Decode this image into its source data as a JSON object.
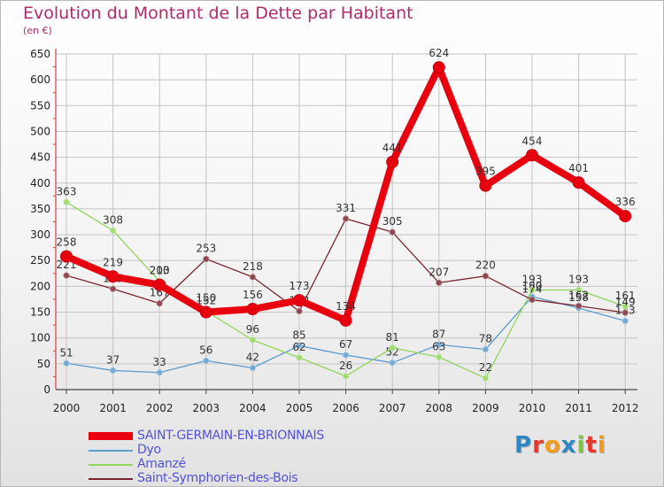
{
  "title": "Evolution du Montant de la Dette par Habitant",
  "subtitle": "(en €)",
  "logo": {
    "text": "Proxiti",
    "letters": [
      {
        "ch": "P",
        "color": "#2f87c8"
      },
      {
        "ch": "r",
        "color": "#e8362b"
      },
      {
        "ch": "o",
        "color": "#f39c1c"
      },
      {
        "ch": "x",
        "color": "#2f87c8"
      },
      {
        "ch": "i",
        "color": "#7cc243"
      },
      {
        "ch": "t",
        "color": "#e8362b"
      },
      {
        "ch": "i",
        "color": "#f39c1c"
      }
    ]
  },
  "chart_data": {
    "type": "line",
    "title": "Evolution du Montant de la Dette par Habitant",
    "ylabel": "(en €)",
    "xlabel": "",
    "ylim": [
      0,
      650
    ],
    "yticks": [
      0,
      50,
      100,
      150,
      200,
      250,
      300,
      350,
      400,
      450,
      500,
      550,
      600,
      650
    ],
    "categories": [
      "2000",
      "2001",
      "2002",
      "2003",
      "2004",
      "2005",
      "2006",
      "2007",
      "2008",
      "2009",
      "2010",
      "2011",
      "2012"
    ],
    "grid": true,
    "series": [
      {
        "name": "Dyo",
        "color": "#5b9ccf",
        "values": [
          51,
          37,
          33,
          56,
          42,
          85,
          67,
          52,
          87,
          78,
          180,
          158,
          133
        ],
        "labels": [
          "51",
          "37",
          "33",
          "56",
          "42",
          "85",
          "67",
          "52",
          "87",
          "78",
          "180",
          "158",
          "133"
        ]
      },
      {
        "name": "Amanzé",
        "color": "#8fd65a",
        "values": [
          363,
          308,
          210,
          152,
          96,
          62,
          26,
          81,
          63,
          22,
          193,
          193,
          161
        ],
        "labels": [
          "363",
          "308",
          "210",
          "152",
          "96",
          "62",
          "26",
          "81",
          "63",
          "22",
          "193",
          "193",
          "161"
        ]
      },
      {
        "name": "Saint-Symphorien-des-Bois",
        "color": "#7a2530",
        "values": [
          221,
          195,
          167,
          253,
          218,
          152,
          331,
          305,
          207,
          220,
          174,
          162,
          149
        ],
        "labels": [
          "221",
          "195",
          "167",
          "253",
          "218",
          "152",
          "331",
          "305",
          "207",
          "220",
          "174",
          "162",
          "149"
        ]
      },
      {
        "name": "SAINT-GERMAIN-EN-BRIONNAIS",
        "color": "#e8000f",
        "values": [
          258,
          219,
          203,
          150,
          156,
          173,
          134,
          441,
          624,
          395,
          454,
          401,
          336
        ],
        "labels": [
          "258",
          "219",
          "203",
          "150",
          "156",
          "173",
          "134",
          "441",
          "624",
          "395",
          "454",
          "401",
          "336"
        ]
      }
    ],
    "legend_order": [
      "SAINT-GERMAIN-EN-BRIONNAIS",
      "Dyo",
      "Amanzé",
      "Saint-Symphorien-des-Bois"
    ]
  }
}
